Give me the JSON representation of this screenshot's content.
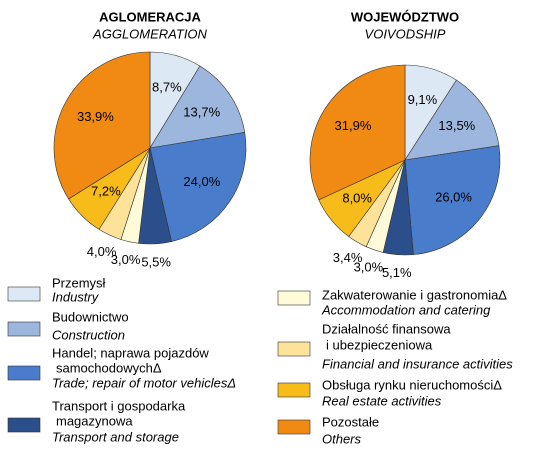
{
  "chart_data": [
    {
      "type": "pie",
      "title": "AGLOMERACJA",
      "subtitle": "AGGLOMERATION",
      "values": [
        8.7,
        13.7,
        24.0,
        5.5,
        3.0,
        4.0,
        7.2,
        33.9
      ],
      "value_labels": [
        "8,7%",
        "13,7%",
        "24,0%",
        "5,5%",
        "3,0%",
        "4,0%",
        "7,2%",
        "33,9%"
      ]
    },
    {
      "type": "pie",
      "title": "WOJEWÓDZTWO",
      "subtitle": "VOIVODSHIP",
      "values": [
        9.1,
        13.5,
        26.0,
        5.1,
        3.0,
        3.4,
        8.0,
        31.9
      ],
      "value_labels": [
        "9,1%",
        "13,5%",
        "26,0%",
        "5,1%",
        "3,0%",
        "3,4%",
        "8,0%",
        "31,9%"
      ]
    }
  ],
  "legend": [
    {
      "pl": [
        "Przemysł"
      ],
      "en": [
        "Industry"
      ],
      "color": "#dde8f5"
    },
    {
      "pl": [
        "Budownictwo"
      ],
      "en": [
        "Construction"
      ],
      "color": "#9db6de"
    },
    {
      "pl": [
        "Handel; naprawa pojazdów",
        "samochodowychΔ"
      ],
      "en": [
        "Trade; repair of motor vehiclesΔ"
      ],
      "color": "#4a7ccc"
    },
    {
      "pl": [
        "Transport i gospodarka",
        "magazynowa"
      ],
      "en": [
        "Transport and storage"
      ],
      "color": "#2b4f8a"
    },
    {
      "pl": [
        "Zakwaterowanie i gastronomiaΔ"
      ],
      "en": [
        "Accommodation and catering"
      ],
      "color": "#fffbd9"
    },
    {
      "pl": [
        "Działalność finansowa",
        "i ubezpieczeniowa"
      ],
      "en": [
        "Financial and insurance activities"
      ],
      "color": "#fde39a"
    },
    {
      "pl": [
        "Obsługa rynku nieruchomościΔ"
      ],
      "en": [
        "Real estate activities"
      ],
      "color": "#f7bb1a"
    },
    {
      "pl": [
        "Pozostałe"
      ],
      "en": [
        "Others"
      ],
      "color": "#f08a12"
    }
  ]
}
